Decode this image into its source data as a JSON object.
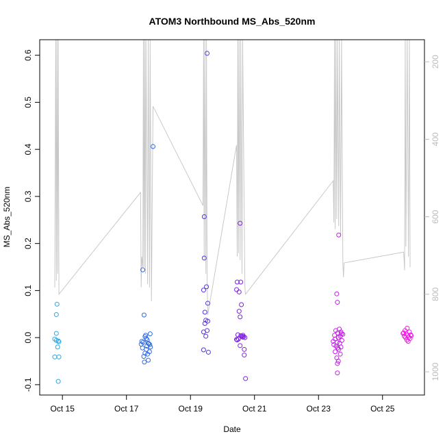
{
  "chart_data": {
    "type": "scatter",
    "title": "ATOM3 Northbound MS_Abs_520nm",
    "x_label": "Date",
    "y_label": "MS_Abs_520nm",
    "xlim": [
      14.29,
      26.31
    ],
    "ylim": [
      -0.122,
      0.633
    ],
    "y2lim": [
      1060,
      143
    ],
    "xticks": [
      {
        "value": 15,
        "label": "Oct 15"
      },
      {
        "value": 17,
        "label": "Oct 17"
      },
      {
        "value": 19,
        "label": "Oct 19"
      },
      {
        "value": 21,
        "label": "Oct 21"
      },
      {
        "value": 23,
        "label": "Oct 23"
      },
      {
        "value": 25,
        "label": "Oct 25"
      }
    ],
    "yticks": [
      -0.1,
      {
        "value": 0,
        "label": "0.0"
      },
      0.1,
      0.2,
      0.3,
      0.4,
      0.5,
      0.6
    ],
    "y2ticks": [
      200,
      400,
      600,
      800,
      1000
    ],
    "line": {
      "color": "#c8c8c8",
      "axis": "y2",
      "x": [
        14.76,
        14.79,
        14.81,
        14.83,
        14.85,
        14.87,
        14.89,
        17.44,
        17.46,
        17.48,
        17.51,
        17.53,
        17.55,
        17.57,
        17.59,
        17.61,
        17.66,
        17.68,
        17.72,
        17.74,
        17.78,
        17.83,
        19.39,
        19.41,
        19.43,
        19.45,
        19.48,
        19.5,
        19.52,
        19.54,
        20.44,
        20.46,
        20.48,
        20.5,
        20.52,
        20.55,
        20.57,
        20.61,
        20.63,
        20.7,
        20.72,
        23.46,
        23.48,
        23.5,
        23.52,
        23.54,
        23.57,
        23.59,
        23.63,
        23.65,
        23.69,
        23.72,
        23.76,
        23.78,
        23.8,
        25.66,
        25.69,
        25.71,
        25.73,
        25.77,
        25.81,
        25.84,
        25.86
      ],
      "values": [
        782,
        143,
        765,
        143,
        747,
        143,
        800,
        537,
        782,
        703,
        730,
        143,
        730,
        143,
        747,
        143,
        774,
        143,
        782,
        143,
        818,
        315,
        571,
        143,
        712,
        143,
        747,
        143,
        756,
        853,
        415,
        703,
        143,
        694,
        143,
        712,
        143,
        747,
        143,
        782,
        800,
        507,
        615,
        143,
        632,
        143,
        606,
        143,
        624,
        143,
        650,
        143,
        721,
        756,
        719,
        691,
        738,
        143,
        677,
        143,
        703,
        143,
        730
      ]
    },
    "series": [
      {
        "color": "#29a5e6",
        "x": [
          14.83,
          14.81,
          14.81,
          14.76,
          14.81,
          14.87,
          14.89,
          14.85,
          14.76,
          14.89,
          14.87
        ],
        "values": [
          0.071,
          0.049,
          0.009,
          -0.003,
          -0.006,
          -0.007,
          -0.009,
          -0.02,
          -0.041,
          -0.041,
          -0.093
        ]
      },
      {
        "color": "#2f6be8",
        "x": [
          17.51,
          17.55,
          17.83,
          17.6,
          17.58,
          17.62,
          17.65,
          17.48,
          17.52,
          17.68,
          17.7,
          17.46,
          17.73,
          17.64,
          17.75,
          17.5,
          17.62,
          17.72,
          17.58,
          17.66,
          17.68,
          17.56,
          17.74,
          17.54
        ],
        "values": [
          0.144,
          0.048,
          0.406,
          0.005,
          0.002,
          -0.002,
          -0.005,
          -0.008,
          -0.01,
          -0.012,
          -0.013,
          -0.014,
          -0.015,
          -0.018,
          -0.02,
          -0.022,
          -0.025,
          -0.03,
          -0.033,
          -0.035,
          -0.048,
          -0.052,
          0.008,
          -0.04
        ]
      },
      {
        "color": "#5530e0",
        "x": [
          19.52,
          19.43,
          19.43,
          19.5,
          19.41,
          19.54,
          19.45,
          19.48,
          19.54,
          19.45,
          19.52,
          19.41,
          19.48,
          19.41,
          19.56
        ],
        "values": [
          0.604,
          0.257,
          0.169,
          0.108,
          0.101,
          0.073,
          0.054,
          0.037,
          0.035,
          0.03,
          0.015,
          0.012,
          0.003,
          -0.026,
          -0.031
        ]
      },
      {
        "color": "#7d1fe0",
        "x": [
          20.55,
          20.46,
          20.57,
          20.44,
          20.52,
          20.59,
          20.52,
          20.55,
          20.48,
          20.57,
          20.61,
          20.66,
          20.63,
          20.7,
          20.5,
          20.46,
          20.55,
          20.68,
          20.68,
          20.72,
          20.64,
          20.44
        ],
        "values": [
          0.243,
          0.118,
          0.118,
          0.102,
          0.097,
          0.07,
          0.056,
          0.044,
          0.006,
          0.004,
          0.003,
          0.002,
          0.001,
          0.0,
          -0.003,
          -0.005,
          -0.017,
          -0.025,
          -0.037,
          -0.087,
          0.005,
          -0.004
        ]
      },
      {
        "color": "#c21ee6",
        "x": [
          23.63,
          23.57,
          23.59,
          23.65,
          23.54,
          23.7,
          23.6,
          23.76,
          23.5,
          23.68,
          23.62,
          23.52,
          23.73,
          23.58,
          23.66,
          23.48,
          23.55,
          23.7,
          23.6,
          23.63,
          23.52,
          23.68,
          23.57,
          23.62,
          23.59,
          23.59,
          23.72,
          23.46
        ],
        "values": [
          0.218,
          0.093,
          0.075,
          0.018,
          0.015,
          0.012,
          0.01,
          0.007,
          0.005,
          0.003,
          0.0,
          -0.003,
          -0.006,
          -0.01,
          -0.012,
          -0.015,
          -0.018,
          -0.02,
          -0.022,
          -0.025,
          -0.03,
          -0.035,
          -0.043,
          -0.05,
          -0.055,
          -0.075,
          0.008,
          -0.008
        ]
      },
      {
        "color": "#f21ce6",
        "x": [
          25.77,
          25.7,
          25.84,
          25.66,
          25.74,
          25.88,
          25.79,
          25.68,
          25.82,
          25.72,
          25.86,
          25.76,
          25.8,
          25.9,
          25.64
        ],
        "values": [
          0.02,
          0.015,
          0.012,
          0.01,
          0.008,
          0.006,
          0.005,
          0.003,
          0.001,
          0.0,
          -0.002,
          -0.005,
          -0.008,
          0.004,
          0.009
        ]
      }
    ]
  }
}
